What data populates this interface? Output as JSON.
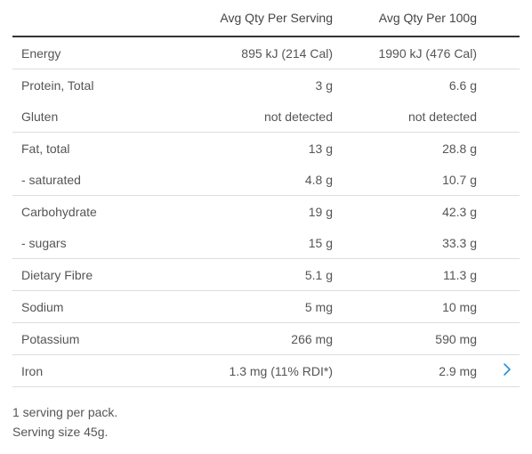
{
  "table": {
    "headers": [
      "",
      "Avg Qty Per Serving",
      "Avg Qty Per 100g"
    ],
    "rows": [
      {
        "name": "Energy",
        "per_serving": "895 kJ (214 Cal)",
        "per_100g": "1990 kJ (476 Cal)"
      },
      {
        "name": "Protein, Total",
        "per_serving": "3 g",
        "per_100g": "6.6 g"
      },
      {
        "name": "Gluten",
        "per_serving": "not detected",
        "per_100g": "not detected"
      },
      {
        "name": "Fat, total",
        "per_serving": "13 g",
        "per_100g": "28.8 g"
      },
      {
        "name": "- saturated",
        "per_serving": "4.8 g",
        "per_100g": "10.7 g"
      },
      {
        "name": "Carbohydrate",
        "per_serving": "19 g",
        "per_100g": "42.3 g"
      },
      {
        "name": "- sugars",
        "per_serving": "15 g",
        "per_100g": "33.3 g"
      },
      {
        "name": "Dietary Fibre",
        "per_serving": "5.1 g",
        "per_100g": "11.3 g"
      },
      {
        "name": "Sodium",
        "per_serving": "5 mg",
        "per_100g": "10 mg"
      },
      {
        "name": "Potassium",
        "per_serving": "266 mg",
        "per_100g": "590 mg"
      },
      {
        "name": "Iron",
        "per_serving": "1.3 mg (11% RDI*)",
        "per_100g": "2.9 mg"
      }
    ]
  },
  "footer": {
    "line1": "1 serving per pack.",
    "line2": "Serving size 45g."
  },
  "icons": {
    "next": "chevron-right-icon"
  },
  "colors": {
    "text": "#555555",
    "header_rule": "#333333",
    "row_rule": "#dddddd",
    "accent": "#2a8fd6"
  }
}
